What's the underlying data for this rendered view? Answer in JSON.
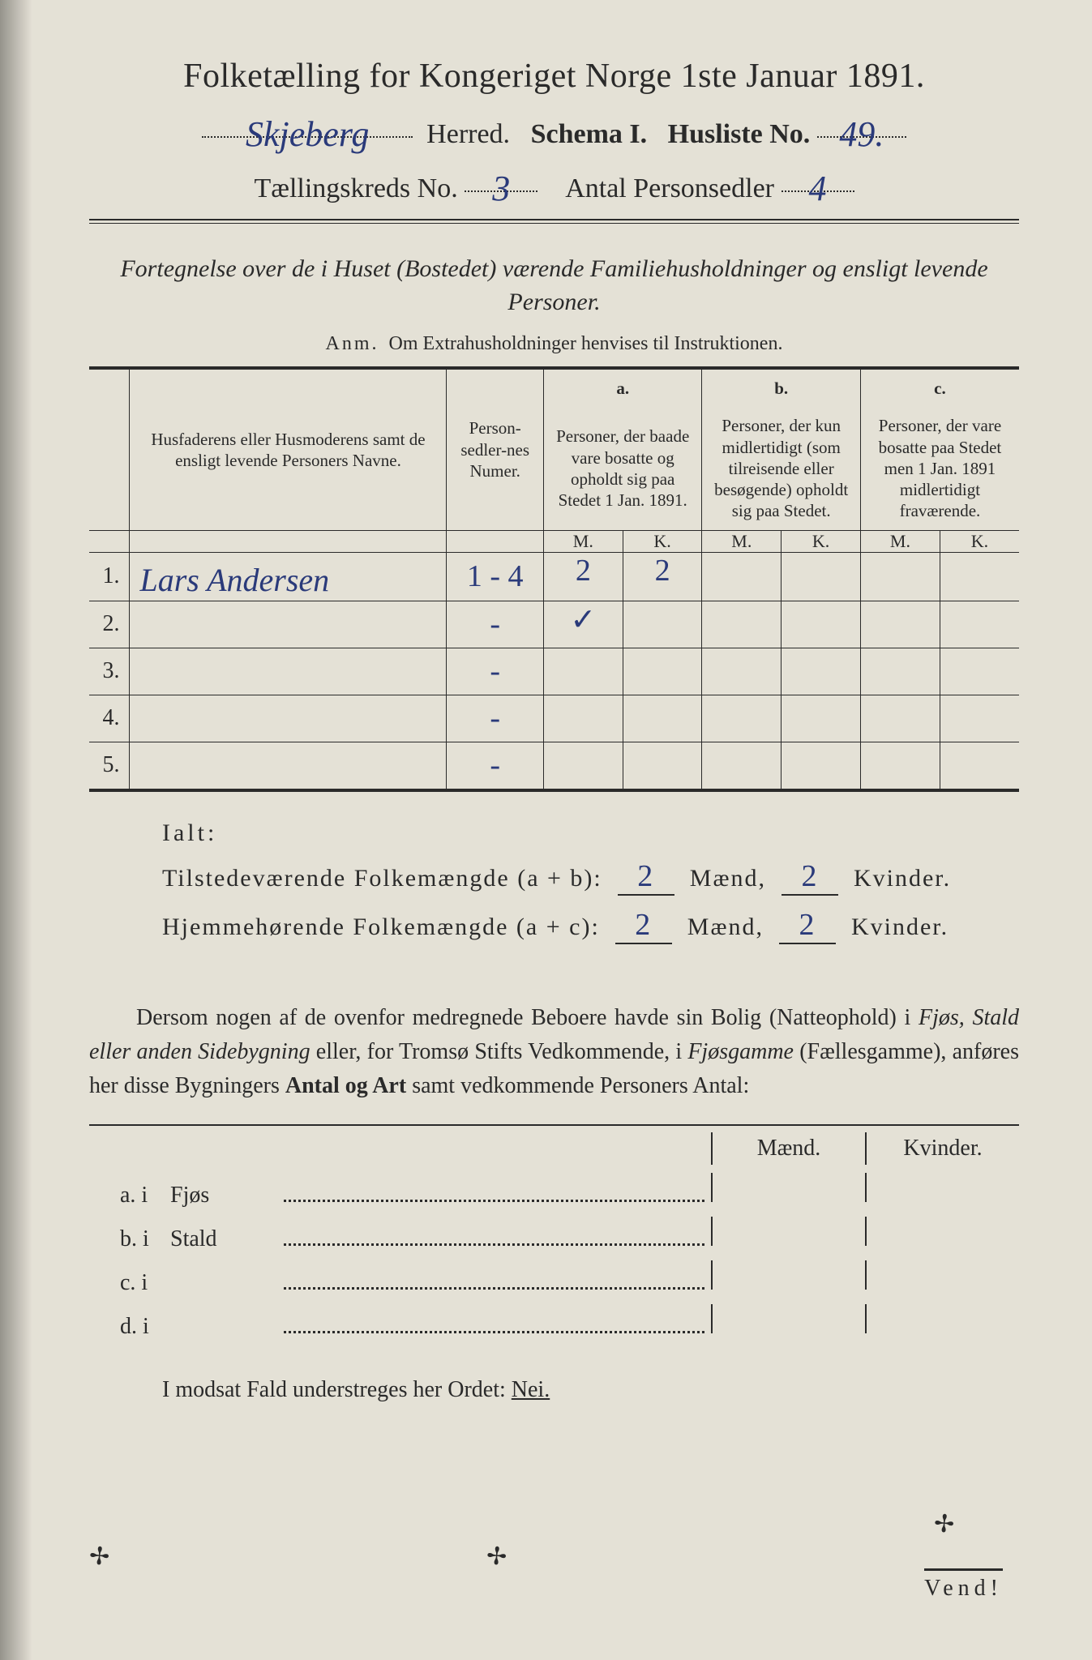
{
  "page": {
    "background": "#e4e1d6",
    "ink": "#2a2a2a",
    "hand_ink": "#2a3a7a"
  },
  "header": {
    "title_prefix": "Folketælling for Kongeriget Norge 1ste Januar",
    "year": "1891.",
    "herred_hand": "Skjeberg",
    "herred_label": "Herred.",
    "schema_label": "Schema I.",
    "husliste_label": "Husliste No.",
    "husliste_no": "49.",
    "kreds_label": "Tællingskreds No.",
    "kreds_no": "3",
    "personsedler_label": "Antal Personsedler",
    "personsedler_no": "4"
  },
  "section": {
    "fortegnelse": "Fortegnelse over de i Huset (Bostedet) værende Familiehusholdninger og ensligt levende Personer.",
    "anm_label": "Anm.",
    "anm_text": "Om Extrahusholdninger henvises til Instruktionen."
  },
  "table": {
    "col_name": "Husfaderens eller Husmoderens samt de ensligt levende Personers Navne.",
    "col_num": "Person-sedler-nes Numer.",
    "col_a_label": "a.",
    "col_a": "Personer, der baade vare bosatte og opholdt sig paa Stedet 1 Jan. 1891.",
    "col_b_label": "b.",
    "col_b": "Personer, der kun midlertidigt (som tilreisende eller besøgende) opholdt sig paa Stedet.",
    "col_c_label": "c.",
    "col_c": "Personer, der vare bosatte paa Stedet men 1 Jan. 1891 midlertidigt fraværende.",
    "m": "M.",
    "k": "K.",
    "rows": [
      {
        "n": "1.",
        "name": "Lars Andersen",
        "num": "1 - 4",
        "a_m": "2",
        "a_k": "2",
        "b_m": "",
        "b_k": "",
        "c_m": "",
        "c_k": ""
      },
      {
        "n": "2.",
        "name": "",
        "num": "-",
        "a_m": "✓",
        "a_k": "",
        "b_m": "",
        "b_k": "",
        "c_m": "",
        "c_k": ""
      },
      {
        "n": "3.",
        "name": "",
        "num": "-",
        "a_m": "",
        "a_k": "",
        "b_m": "",
        "b_k": "",
        "c_m": "",
        "c_k": ""
      },
      {
        "n": "4.",
        "name": "",
        "num": "-",
        "a_m": "",
        "a_k": "",
        "b_m": "",
        "b_k": "",
        "c_m": "",
        "c_k": ""
      },
      {
        "n": "5.",
        "name": "",
        "num": "-",
        "a_m": "",
        "a_k": "",
        "b_m": "",
        "b_k": "",
        "c_m": "",
        "c_k": ""
      }
    ]
  },
  "sums": {
    "ialt": "Ialt:",
    "line1_label": "Tilstedeværende Folkemængde (a + b):",
    "line2_label": "Hjemmehørende Folkemængde (a + c):",
    "maend": "Mænd,",
    "kvinder": "Kvinder.",
    "l1_m": "2",
    "l1_k": "2",
    "l2_m": "2",
    "l2_k": "2"
  },
  "para": {
    "text1": "Dersom nogen af de ovenfor medregnede Beboere havde sin Bolig (Natteophold) i ",
    "ital1": "Fjøs, Stald eller anden Sidebygning",
    "text2": " eller, for Tromsø Stifts Vedkommende, i ",
    "ital2": "Fjøsgamme",
    "text3": " (Fællesgamme), anføres her disse Bygningers ",
    "bold1": "Antal og Art",
    "text4": " samt vedkommende Personers Antal:"
  },
  "abcd": {
    "m": "Mænd.",
    "k": "Kvinder.",
    "rows": [
      {
        "lab": "a.  i",
        "place": "Fjøs"
      },
      {
        "lab": "b.  i",
        "place": "Stald"
      },
      {
        "lab": "c.  i",
        "place": ""
      },
      {
        "lab": "d.  i",
        "place": ""
      }
    ]
  },
  "footer": {
    "nei_line_pre": "I modsat Fald understreges her Ordet: ",
    "nei": "Nei.",
    "vend": "Vend!"
  }
}
